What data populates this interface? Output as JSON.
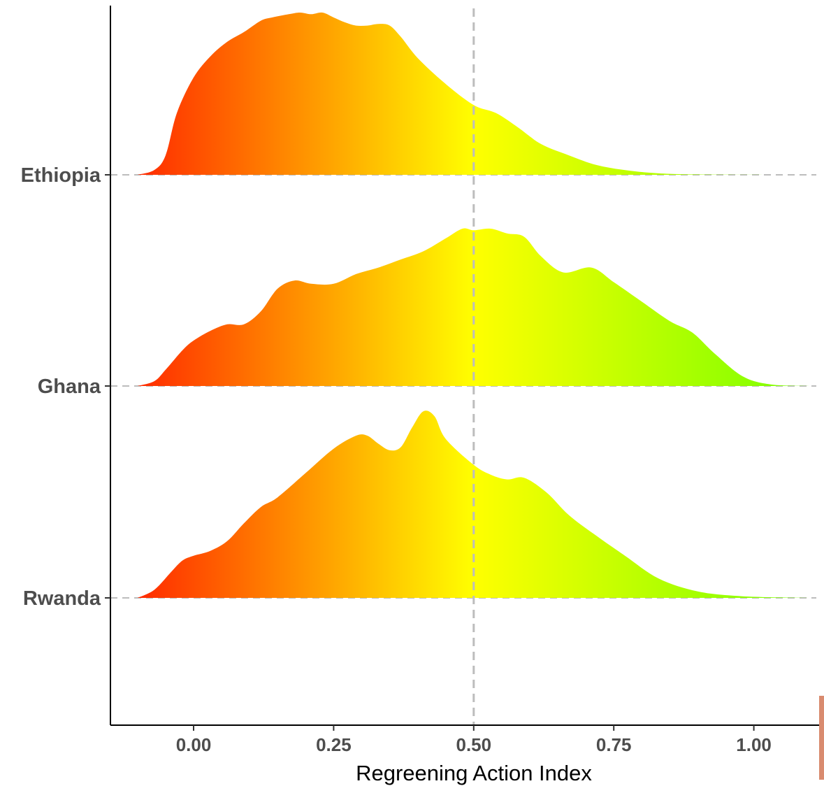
{
  "chart_data": {
    "type": "area",
    "subtype": "ridgeline",
    "title": "",
    "xlabel": "Regreening Action Index",
    "ylabel": "",
    "xlim": [
      -0.15,
      1.11
    ],
    "x_ticks": [
      0.0,
      0.25,
      0.5,
      0.75,
      1.0
    ],
    "x_tick_labels": [
      "0.00",
      "0.25",
      "0.50",
      "0.75",
      "1.00"
    ],
    "reference_line": {
      "x": 0.5,
      "style": "dashed"
    },
    "fill_gradient": {
      "low": "#ff2a00",
      "mid": "#ffff00",
      "high": "#77ff00",
      "low_value": -0.1,
      "mid_value": 0.5,
      "high_value": 1.1
    },
    "series": [
      {
        "name": "Ethiopia",
        "x": [
          -0.1,
          -0.07,
          -0.05,
          -0.03,
          0.0,
          0.03,
          0.06,
          0.09,
          0.12,
          0.14,
          0.17,
          0.19,
          0.21,
          0.23,
          0.25,
          0.27,
          0.29,
          0.31,
          0.33,
          0.35,
          0.37,
          0.4,
          0.45,
          0.5,
          0.54,
          0.58,
          0.62,
          0.67,
          0.72,
          0.78,
          0.85,
          0.95,
          1.05,
          1.1
        ],
        "y": [
          0.0,
          0.03,
          0.12,
          0.38,
          0.6,
          0.73,
          0.82,
          0.88,
          0.95,
          0.97,
          0.99,
          1.0,
          0.99,
          1.0,
          0.97,
          0.94,
          0.92,
          0.92,
          0.93,
          0.92,
          0.85,
          0.72,
          0.56,
          0.43,
          0.38,
          0.29,
          0.19,
          0.12,
          0.06,
          0.025,
          0.006,
          0.001,
          0.0,
          0.0
        ]
      },
      {
        "name": "Ghana",
        "x": [
          -0.1,
          -0.07,
          -0.05,
          -0.02,
          0.0,
          0.03,
          0.06,
          0.09,
          0.12,
          0.15,
          0.18,
          0.21,
          0.25,
          0.29,
          0.33,
          0.37,
          0.41,
          0.45,
          0.48,
          0.5,
          0.53,
          0.56,
          0.59,
          0.62,
          0.66,
          0.71,
          0.75,
          0.8,
          0.85,
          0.89,
          0.93,
          0.98,
          1.03,
          1.1
        ],
        "y": [
          0.0,
          0.03,
          0.1,
          0.22,
          0.28,
          0.34,
          0.38,
          0.38,
          0.46,
          0.6,
          0.65,
          0.63,
          0.63,
          0.69,
          0.73,
          0.78,
          0.83,
          0.91,
          0.97,
          0.96,
          0.97,
          0.94,
          0.92,
          0.8,
          0.7,
          0.73,
          0.64,
          0.52,
          0.4,
          0.33,
          0.2,
          0.06,
          0.01,
          0.0
        ]
      },
      {
        "name": "Rwanda",
        "x": [
          -0.1,
          -0.07,
          -0.04,
          -0.02,
          0.0,
          0.03,
          0.06,
          0.09,
          0.12,
          0.15,
          0.2,
          0.25,
          0.29,
          0.31,
          0.33,
          0.35,
          0.37,
          0.39,
          0.41,
          0.43,
          0.45,
          0.5,
          0.53,
          0.56,
          0.59,
          0.63,
          0.67,
          0.72,
          0.77,
          0.83,
          0.9,
          0.98,
          1.1
        ],
        "y": [
          0.0,
          0.05,
          0.16,
          0.23,
          0.26,
          0.29,
          0.35,
          0.46,
          0.56,
          0.62,
          0.77,
          0.92,
          1.0,
          1.0,
          0.95,
          0.91,
          0.93,
          1.05,
          1.15,
          1.12,
          0.98,
          0.82,
          0.76,
          0.73,
          0.74,
          0.65,
          0.51,
          0.38,
          0.26,
          0.12,
          0.04,
          0.01,
          0.0
        ]
      }
    ]
  }
}
